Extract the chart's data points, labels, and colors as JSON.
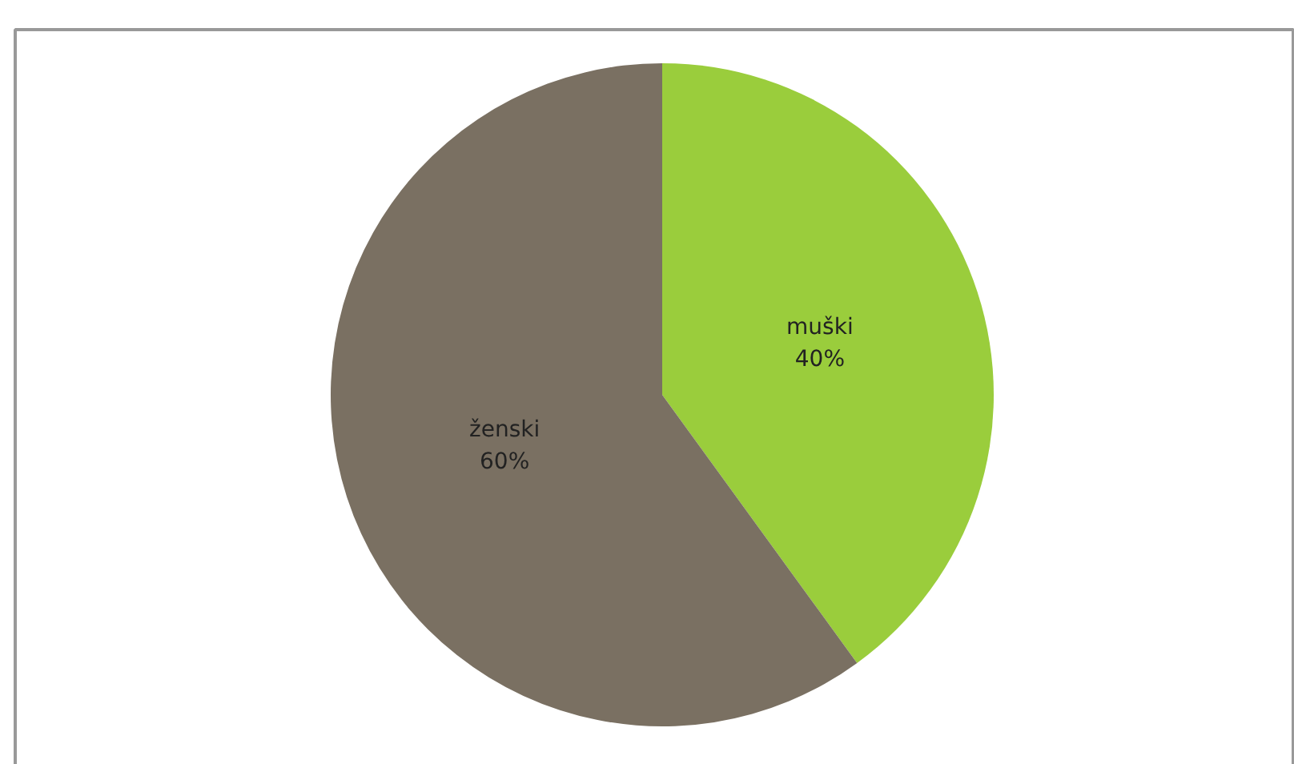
{
  "chart_data": {
    "type": "pie",
    "categories": [
      "muški",
      "ženski"
    ],
    "values": [
      40,
      60
    ],
    "value_labels": [
      "40%",
      "60%"
    ],
    "colors": [
      "#9acd3c",
      "#7a7062"
    ]
  }
}
